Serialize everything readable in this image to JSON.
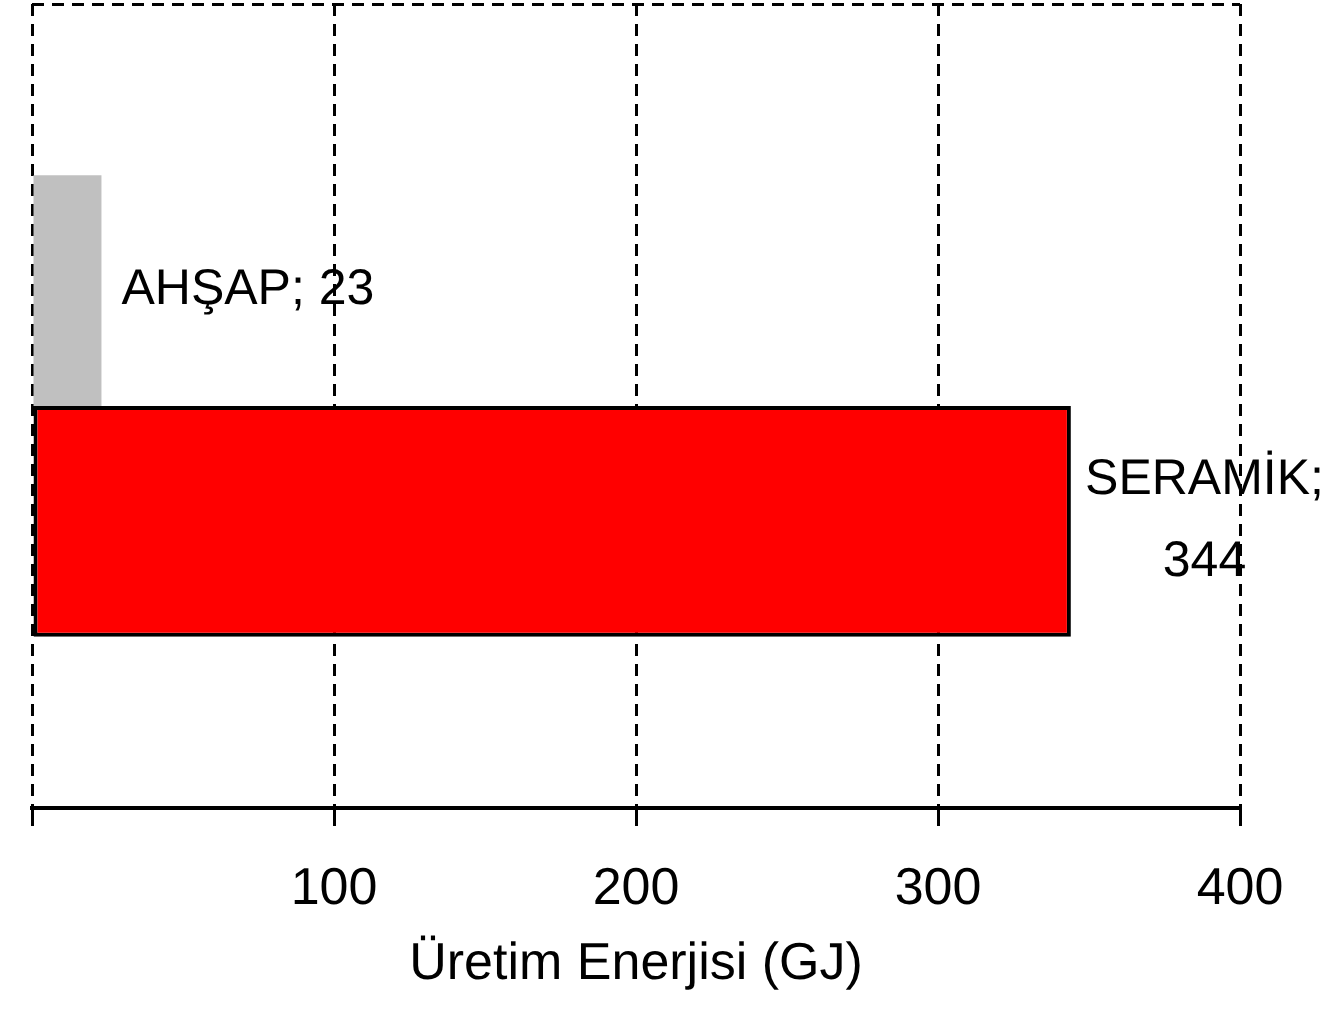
{
  "chart_data": {
    "type": "bar",
    "orientation": "horizontal",
    "xlabel": "Üretim Enerjisi (GJ)",
    "categories": [
      null
    ],
    "series": [
      {
        "color": "#c0c0c0",
        "values": [
          23
        ],
        "value_labels": [
          "AHŞAP; 23"
        ]
      },
      {
        "color": "#ff0000",
        "values": [
          344
        ],
        "value_labels": [
          "SERAMİK; 344"
        ]
      }
    ],
    "xlim": [
      0,
      400
    ],
    "xticks": [
      {
        "value": 0,
        "label": null
      },
      100,
      200,
      300,
      400
    ],
    "grid": true,
    "tick_labels": "x"
  }
}
